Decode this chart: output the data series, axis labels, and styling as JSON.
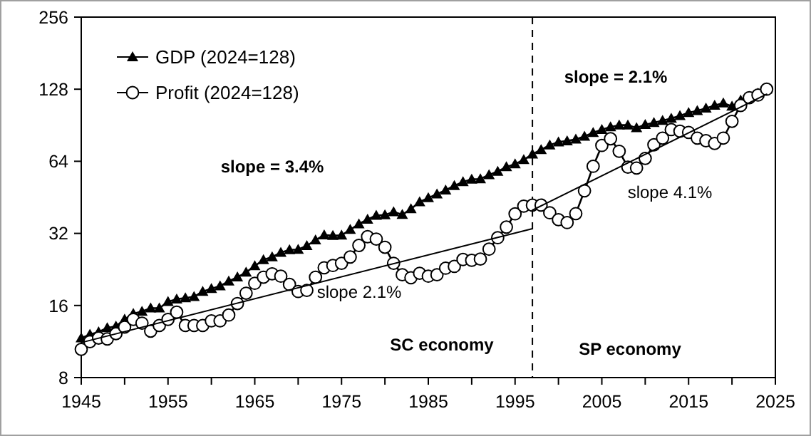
{
  "chart_data": {
    "type": "line",
    "log": "y",
    "xlim": [
      1945,
      2025
    ],
    "ylim": [
      8,
      256
    ],
    "xticks": [
      1945,
      {
        "value": 1950,
        "label": null
      },
      1955,
      {
        "value": 1960,
        "label": null
      },
      1965,
      {
        "value": 1970,
        "label": null
      },
      1975,
      {
        "value": 1980,
        "label": null
      },
      1985,
      {
        "value": 1990,
        "label": null
      },
      1995,
      {
        "value": 2000,
        "label": null
      },
      2005,
      {
        "value": 2010,
        "label": null
      },
      2015,
      {
        "value": 2020,
        "label": null
      },
      2025
    ],
    "yticks": [
      8,
      16,
      32,
      64,
      128,
      256
    ],
    "grid": false,
    "legend": "top left",
    "x": [
      1945,
      1946,
      1947,
      1948,
      1949,
      1950,
      1951,
      1952,
      1953,
      1954,
      1955,
      1956,
      1957,
      1958,
      1959,
      1960,
      1961,
      1962,
      1963,
      1964,
      1965,
      1966,
      1967,
      1968,
      1969,
      1970,
      1971,
      1972,
      1973,
      1974,
      1975,
      1976,
      1977,
      1978,
      1979,
      1980,
      1981,
      1982,
      1983,
      1984,
      1985,
      1986,
      1987,
      1988,
      1989,
      1990,
      1991,
      1992,
      1993,
      1994,
      1995,
      1996,
      1997,
      1998,
      1999,
      2000,
      2001,
      2002,
      2003,
      2004,
      2005,
      2006,
      2007,
      2008,
      2009,
      2010,
      2011,
      2012,
      2013,
      2014,
      2015,
      2016,
      2017,
      2018,
      2019,
      2020,
      2021,
      2022,
      2023,
      2024
    ],
    "series": [
      {
        "name": "GDP (2024=128)",
        "color": "#000000",
        "marker": "triangle",
        "values": [
          11.7,
          12.1,
          12.4,
          12.9,
          13.1,
          14.0,
          14.8,
          15.1,
          15.6,
          15.6,
          16.6,
          17.0,
          17.2,
          17.4,
          18.3,
          18.8,
          19.3,
          20.2,
          21.0,
          22.0,
          23.4,
          24.8,
          25.5,
          26.6,
          27.3,
          27.4,
          28.4,
          30.0,
          31.5,
          31.3,
          31.4,
          33.2,
          35.0,
          36.6,
          38.0,
          38.2,
          39.3,
          38.3,
          40.5,
          43.3,
          45.0,
          46.7,
          48.5,
          50.6,
          52.5,
          53.8,
          54.0,
          56.2,
          58.0,
          60.6,
          62.3,
          65.0,
          68.5,
          71.5,
          74.8,
          77.0,
          77.8,
          79.1,
          81.3,
          84.3,
          86.8,
          89.0,
          90.6,
          90.6,
          88.3,
          91.0,
          92.8,
          94.7,
          96.6,
          99.1,
          102.0,
          104.0,
          106.5,
          109.4,
          112.0,
          108.5,
          115.0,
          118.7,
          123.0,
          128
        ]
      },
      {
        "name": "Profit (2024=128)",
        "color": "#000000",
        "marker": "circle",
        "values": [
          10.5,
          11.3,
          11.7,
          11.6,
          12.2,
          13.0,
          14.0,
          13.5,
          12.5,
          13.2,
          14.0,
          15.0,
          13.2,
          13.2,
          13.2,
          13.8,
          13.8,
          14.6,
          16.3,
          18.0,
          19.8,
          21.0,
          21.7,
          21.2,
          19.6,
          18.3,
          18.5,
          21.0,
          23.0,
          23.5,
          24.0,
          25.5,
          28.5,
          31.0,
          30.3,
          28.0,
          24.0,
          21.5,
          20.9,
          21.8,
          21.2,
          21.5,
          22.9,
          23.3,
          24.9,
          24.7,
          25.0,
          27.5,
          30.7,
          34.0,
          38.6,
          41.6,
          42.0,
          42.0,
          39.0,
          36.5,
          35.5,
          38.7,
          48.2,
          61.0,
          74.5,
          79.5,
          70.5,
          60.5,
          60.0,
          65.8,
          75.0,
          80.0,
          86.8,
          85.5,
          84.5,
          80.0,
          78.0,
          76.0,
          80.0,
          94.0,
          109.5,
          118.0,
          121.0,
          128
        ]
      },
      {
        "color": "#000000",
        "x": [
          1945,
          1997
        ],
        "values": [
          11.2,
          33.5
        ]
      },
      {
        "color": "#000000",
        "x": [
          1997,
          2024
        ],
        "values": [
          40,
          122
        ]
      }
    ],
    "ref_lines": [
      {
        "axis": "x",
        "value": 1997,
        "color": "#000000",
        "line_style": "dashed"
      }
    ],
    "annotations": [
      "slope = 3.4%",
      "slope 2.1%",
      "slope = 2.1%",
      "slope 4.1%",
      "SC economy",
      "SP economy"
    ]
  }
}
